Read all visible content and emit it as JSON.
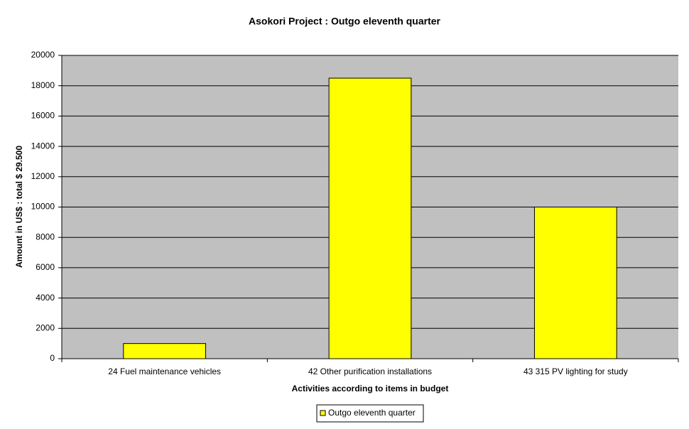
{
  "chart_data": {
    "type": "bar",
    "title": "Asokori Project : Outgo eleventh quarter",
    "x_label": "Activities according to items in budget",
    "y_label": "Amount in US$ : total $ 29.500",
    "categories": [
      "24 Fuel maintenance vehicles",
      "42 Other purification installations",
      "43 315 PV lighting for study"
    ],
    "series": [
      {
        "name": "Outgo eleventh quarter",
        "color": "#ffff00",
        "values": [
          1000,
          18500,
          10000
        ]
      }
    ],
    "ylim": [
      0,
      20000
    ],
    "yticks": [
      0,
      2000,
      4000,
      6000,
      8000,
      10000,
      12000,
      14000,
      16000,
      18000,
      20000
    ],
    "grid": true,
    "legend": "bottom"
  }
}
